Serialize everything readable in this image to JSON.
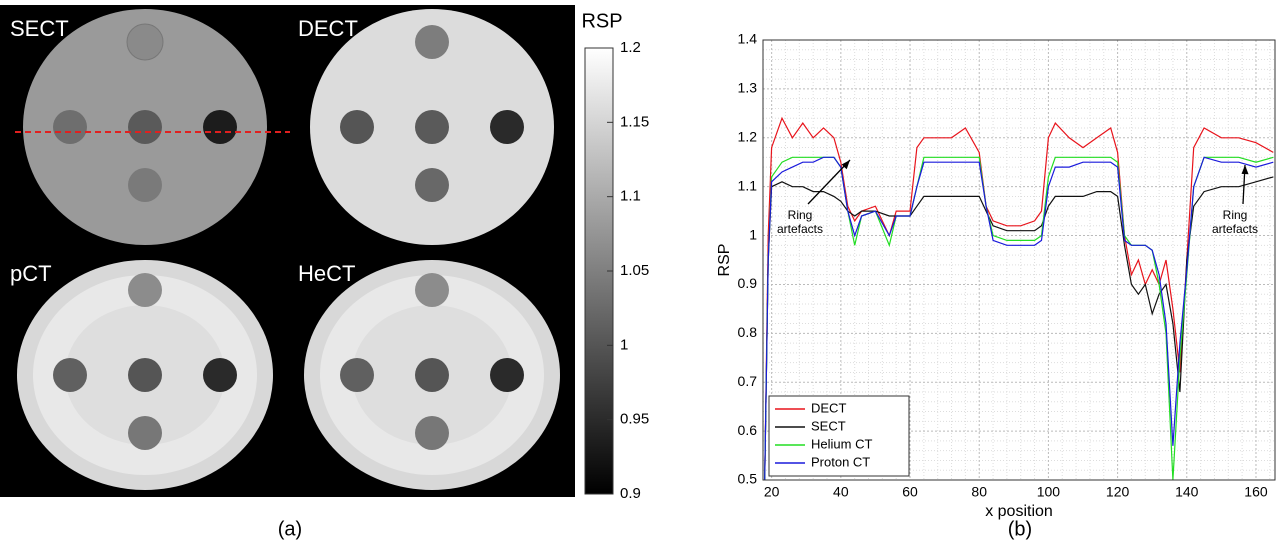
{
  "chart_data": [
    {
      "type": "image",
      "panels": [
        "SECT",
        "DECT",
        "pCT",
        "HeCT"
      ],
      "colorbar_label": "RSP",
      "colormap": "gray",
      "clim": [
        0.9,
        1.2
      ],
      "cticks": [
        0.9,
        0.95,
        1,
        1.05,
        1.1,
        1.15,
        1.2
      ],
      "caption": "(a)"
    },
    {
      "type": "line",
      "caption": "(b)",
      "xlabel": "x position",
      "ylabel": "RSP",
      "x": [
        18,
        19,
        20,
        23,
        26,
        29,
        32,
        35,
        38,
        40,
        42,
        44,
        46,
        50,
        54,
        56,
        60,
        62,
        64,
        68,
        72,
        76,
        80,
        82,
        84,
        88,
        92,
        96,
        98,
        100,
        102,
        106,
        110,
        114,
        118,
        120,
        122,
        124,
        126,
        128,
        130,
        132,
        134,
        136,
        138,
        140,
        142,
        145,
        150,
        155,
        160,
        165
      ],
      "series": [
        {
          "name": "DECT",
          "color": "#e8141c",
          "values": [
            0.5,
            1.0,
            1.18,
            1.24,
            1.2,
            1.23,
            1.2,
            1.22,
            1.2,
            1.15,
            1.06,
            1.03,
            1.05,
            1.06,
            1.0,
            1.05,
            1.05,
            1.18,
            1.2,
            1.2,
            1.2,
            1.22,
            1.17,
            1.06,
            1.03,
            1.02,
            1.02,
            1.03,
            1.05,
            1.2,
            1.23,
            1.2,
            1.18,
            1.2,
            1.22,
            1.17,
            1.0,
            0.92,
            0.95,
            0.9,
            0.93,
            0.9,
            0.95,
            0.85,
            0.72,
            0.95,
            1.18,
            1.22,
            1.2,
            1.2,
            1.19,
            1.17
          ]
        },
        {
          "name": "SECT",
          "color": "#111111",
          "values": [
            0.5,
            0.95,
            1.1,
            1.11,
            1.1,
            1.1,
            1.09,
            1.09,
            1.08,
            1.07,
            1.05,
            1.04,
            1.05,
            1.05,
            1.04,
            1.04,
            1.04,
            1.06,
            1.08,
            1.08,
            1.08,
            1.08,
            1.08,
            1.05,
            1.02,
            1.01,
            1.01,
            1.01,
            1.02,
            1.06,
            1.08,
            1.08,
            1.08,
            1.09,
            1.09,
            1.08,
            0.98,
            0.9,
            0.88,
            0.9,
            0.84,
            0.88,
            0.9,
            0.82,
            0.68,
            0.95,
            1.06,
            1.09,
            1.1,
            1.1,
            1.11,
            1.12
          ]
        },
        {
          "name": "Helium CT",
          "color": "#22dd22",
          "values": [
            0.5,
            0.95,
            1.12,
            1.15,
            1.16,
            1.16,
            1.16,
            1.16,
            1.16,
            1.14,
            1.05,
            0.98,
            1.04,
            1.05,
            0.98,
            1.04,
            1.04,
            1.1,
            1.16,
            1.16,
            1.16,
            1.16,
            1.16,
            1.06,
            1.0,
            0.99,
            0.99,
            0.99,
            1.0,
            1.12,
            1.16,
            1.16,
            1.16,
            1.16,
            1.16,
            1.15,
            1.0,
            0.98,
            0.98,
            0.98,
            0.97,
            0.9,
            0.8,
            0.5,
            0.75,
            0.92,
            1.1,
            1.16,
            1.16,
            1.16,
            1.15,
            1.16
          ]
        },
        {
          "name": "Proton CT",
          "color": "#1a1adc",
          "values": [
            0.5,
            0.95,
            1.11,
            1.13,
            1.14,
            1.15,
            1.15,
            1.16,
            1.16,
            1.14,
            1.05,
            1.0,
            1.04,
            1.05,
            1.0,
            1.04,
            1.04,
            1.1,
            1.15,
            1.15,
            1.15,
            1.15,
            1.15,
            1.06,
            0.99,
            0.98,
            0.98,
            0.98,
            0.99,
            1.1,
            1.14,
            1.14,
            1.15,
            1.15,
            1.15,
            1.14,
            0.99,
            0.98,
            0.98,
            0.98,
            0.97,
            0.92,
            0.82,
            0.57,
            0.78,
            0.93,
            1.1,
            1.16,
            1.15,
            1.15,
            1.14,
            1.15
          ]
        }
      ],
      "xlim": [
        17.5,
        165.5
      ],
      "xticks": [
        20,
        40,
        60,
        80,
        100,
        120,
        140,
        160
      ],
      "ylim": [
        0.5,
        1.4
      ],
      "yticks": [
        0.5,
        0.6,
        0.7,
        0.8,
        0.9,
        1,
        1.1,
        1.2,
        1.3,
        1.4
      ],
      "grid": true,
      "minor_grid": true,
      "legend": "lower left",
      "annotations": [
        [
          "Ring",
          "artefacts"
        ],
        [
          "Ring",
          "artefacts"
        ]
      ]
    }
  ]
}
